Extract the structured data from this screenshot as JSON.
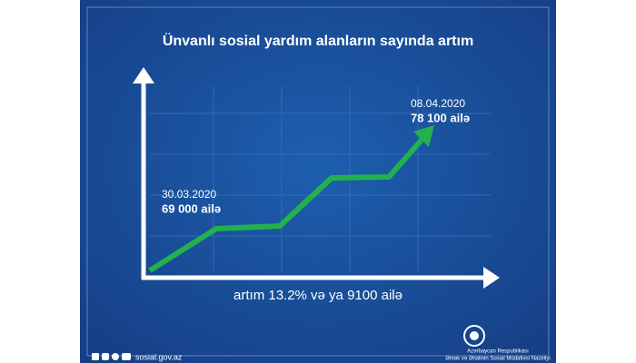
{
  "title": "Ünvanlı sosial yardım alanların sayında artım",
  "annotations": [
    {
      "date": "30.03.2020",
      "value": "69 000 ailə"
    },
    {
      "date": "08.04.2020",
      "value": "78 100 ailə"
    }
  ],
  "caption": "artım 13.2% və ya 9100 ailə",
  "footer": {
    "website": "sosial.gov.az",
    "ministry": [
      "Azərbaycan Respublikası",
      "Əmək və Əhalinin Sosial Müdafiəsi Nazirliyi"
    ]
  }
}
